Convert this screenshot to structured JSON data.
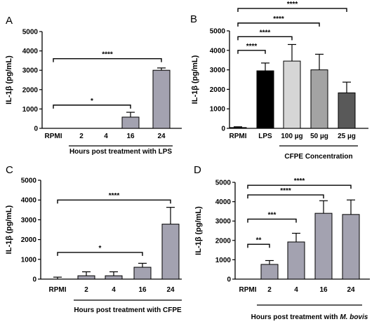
{
  "chart_data": [
    {
      "panel_label": "A",
      "type": "bar",
      "ylabel": "IL-1β (pg/mL)",
      "ylim": [
        0,
        5000
      ],
      "yticks": [
        0,
        1000,
        2000,
        3000,
        4000,
        5000
      ],
      "categories": [
        "RPMI",
        "2",
        "4",
        "16",
        "24"
      ],
      "values": [
        0,
        0,
        0,
        580,
        3000
      ],
      "errors": [
        0,
        0,
        0,
        250,
        120
      ],
      "bar_colors": [
        null,
        "#a3a2b0",
        "#a3a2b0",
        "#a3a2b0",
        "#a3a2b0"
      ],
      "group_label": "Hours post treatment with LPS",
      "group_range": [
        1,
        4
      ],
      "significance": [
        {
          "from": 0,
          "to": 4,
          "label": "****",
          "y": 3600
        },
        {
          "from": 0,
          "to": 3,
          "label": "*",
          "y": 1200
        }
      ]
    },
    {
      "panel_label": "B",
      "type": "bar",
      "ylabel": "IL-1β (pg/mL)",
      "ylim": [
        0,
        5000
      ],
      "yticks": [
        0,
        1000,
        2000,
        3000,
        4000,
        5000
      ],
      "categories": [
        "RPMI",
        "LPS",
        "100 µg",
        "50 µg",
        "25 µg"
      ],
      "values": [
        40,
        2950,
        3450,
        3000,
        1820
      ],
      "errors": [
        40,
        400,
        850,
        800,
        550
      ],
      "bar_colors": [
        "#000000",
        "#000000",
        "#d6d6d6",
        "#a3a3a3",
        "#595959"
      ],
      "group_label": "CFPE Concentration",
      "group_range": [
        2,
        4
      ],
      "significance": [
        {
          "from": 0,
          "to": 4,
          "label": "****",
          "y": 6150
        },
        {
          "from": 0,
          "to": 3,
          "label": "****",
          "y": 5400
        },
        {
          "from": 0,
          "to": 2,
          "label": "****",
          "y": 4700
        },
        {
          "from": 0,
          "to": 1,
          "label": "****",
          "y": 4000
        }
      ]
    },
    {
      "panel_label": "C",
      "type": "bar",
      "ylabel": "IL-1β (pg/mL)",
      "ylim": [
        0,
        5000
      ],
      "yticks": [
        0,
        1000,
        2000,
        3000,
        4000,
        5000
      ],
      "categories": [
        "RPMI",
        "2",
        "4",
        "16",
        "24"
      ],
      "values": [
        0,
        170,
        170,
        600,
        2780
      ],
      "errors": [
        100,
        200,
        200,
        200,
        850
      ],
      "bar_colors": [
        null,
        "#a3a2b0",
        "#a3a2b0",
        "#a3a2b0",
        "#a3a2b0"
      ],
      "group_label": "Hours post treatment with CFPE",
      "group_range": [
        1,
        4
      ],
      "significance": [
        {
          "from": 0,
          "to": 4,
          "label": "****",
          "y": 4000
        },
        {
          "from": 0,
          "to": 3,
          "label": "*",
          "y": 1350
        }
      ]
    },
    {
      "panel_label": "D",
      "type": "bar",
      "ylabel": "IL-1β (pg/mL)",
      "ylim": [
        0,
        5000
      ],
      "yticks": [
        0,
        1000,
        2000,
        3000,
        4000,
        5000
      ],
      "categories": [
        "RPMI",
        "2",
        "4",
        "16",
        "24"
      ],
      "values": [
        0,
        760,
        1920,
        3400,
        3340
      ],
      "errors": [
        0,
        200,
        450,
        650,
        750
      ],
      "bar_colors": [
        null,
        "#a3a2b0",
        "#a3a2b0",
        "#a3a2b0",
        "#a3a2b0"
      ],
      "group_label": "Hours post treatment with ",
      "group_label_italic": "M. bovis",
      "group_range": [
        1,
        4
      ],
      "significance": [
        {
          "from": 0,
          "to": 4,
          "label": "****",
          "y": 4850
        },
        {
          "from": 0,
          "to": 3,
          "label": "****",
          "y": 4350
        },
        {
          "from": 0,
          "to": 2,
          "label": "***",
          "y": 3100
        },
        {
          "from": 0,
          "to": 1,
          "label": "**",
          "y": 1800
        }
      ]
    }
  ]
}
